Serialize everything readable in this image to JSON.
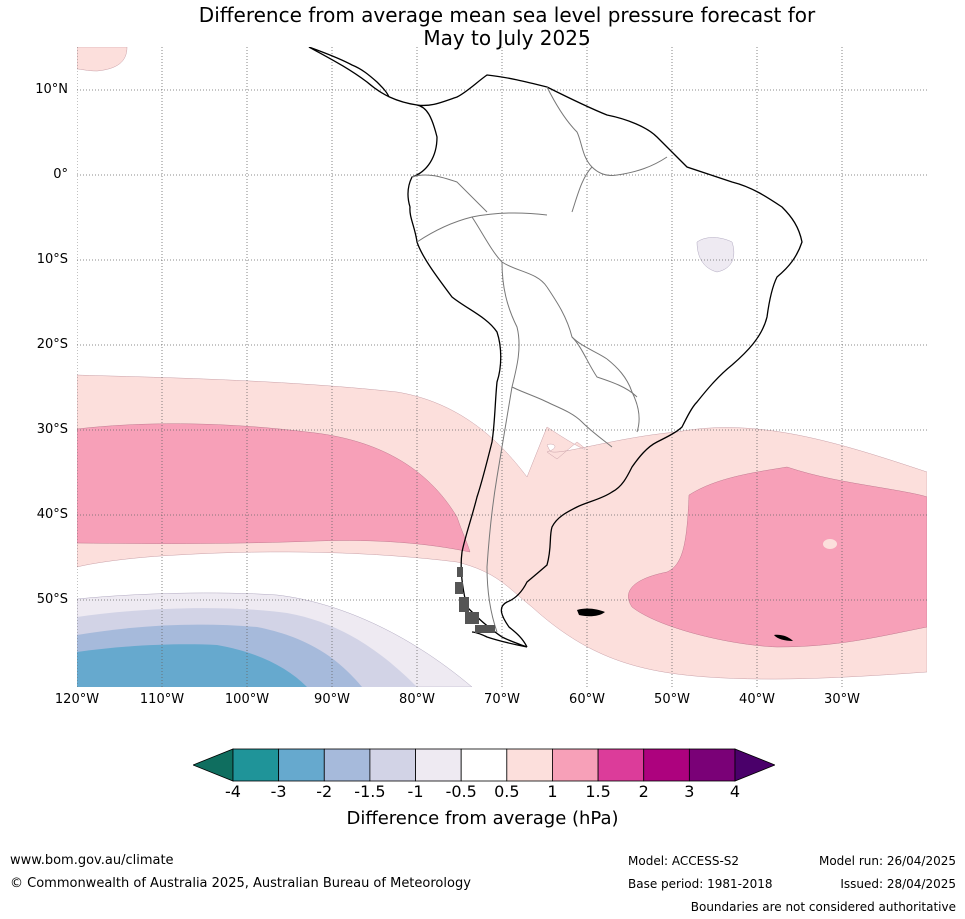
{
  "title_line1": "Difference from average mean sea level pressure forecast for",
  "title_line2": "May to July 2025",
  "map": {
    "lat_labels": [
      "10°N",
      "0°",
      "10°S",
      "20°S",
      "30°S",
      "40°S",
      "50°S"
    ],
    "lon_labels": [
      "120°W",
      "110°W",
      "100°W",
      "90°W",
      "80°W",
      "70°W",
      "60°W",
      "50°W",
      "40°W",
      "30°W"
    ]
  },
  "colorbar": {
    "ticks": [
      "-4",
      "-3",
      "-2",
      "-1.5",
      "-1",
      "-0.5",
      "0.5",
      "1",
      "1.5",
      "2",
      "3",
      "4"
    ],
    "colors": [
      "#0f6e5f",
      "#1f9499",
      "#66a9ce",
      "#a6badb",
      "#d2d3e6",
      "#eeeaf2",
      "#ffffff",
      "#fcdfdc",
      "#f7a0b8",
      "#dc3c9a",
      "#ad027e",
      "#7a0177",
      "#4a006a"
    ],
    "label": "Difference from average (hPa)"
  },
  "footer": {
    "url": "www.bom.gov.au/climate",
    "copyright": "© Commonwealth of Australia 2025, Australian Bureau of Meteorology",
    "model": "Model: ACCESS-S2",
    "base_period": "Base period: 1981-2018",
    "model_run": "Model run: 26/04/2025",
    "issued": "Issued: 28/04/2025",
    "disclaimer": "Boundaries are not considered authoritative"
  }
}
